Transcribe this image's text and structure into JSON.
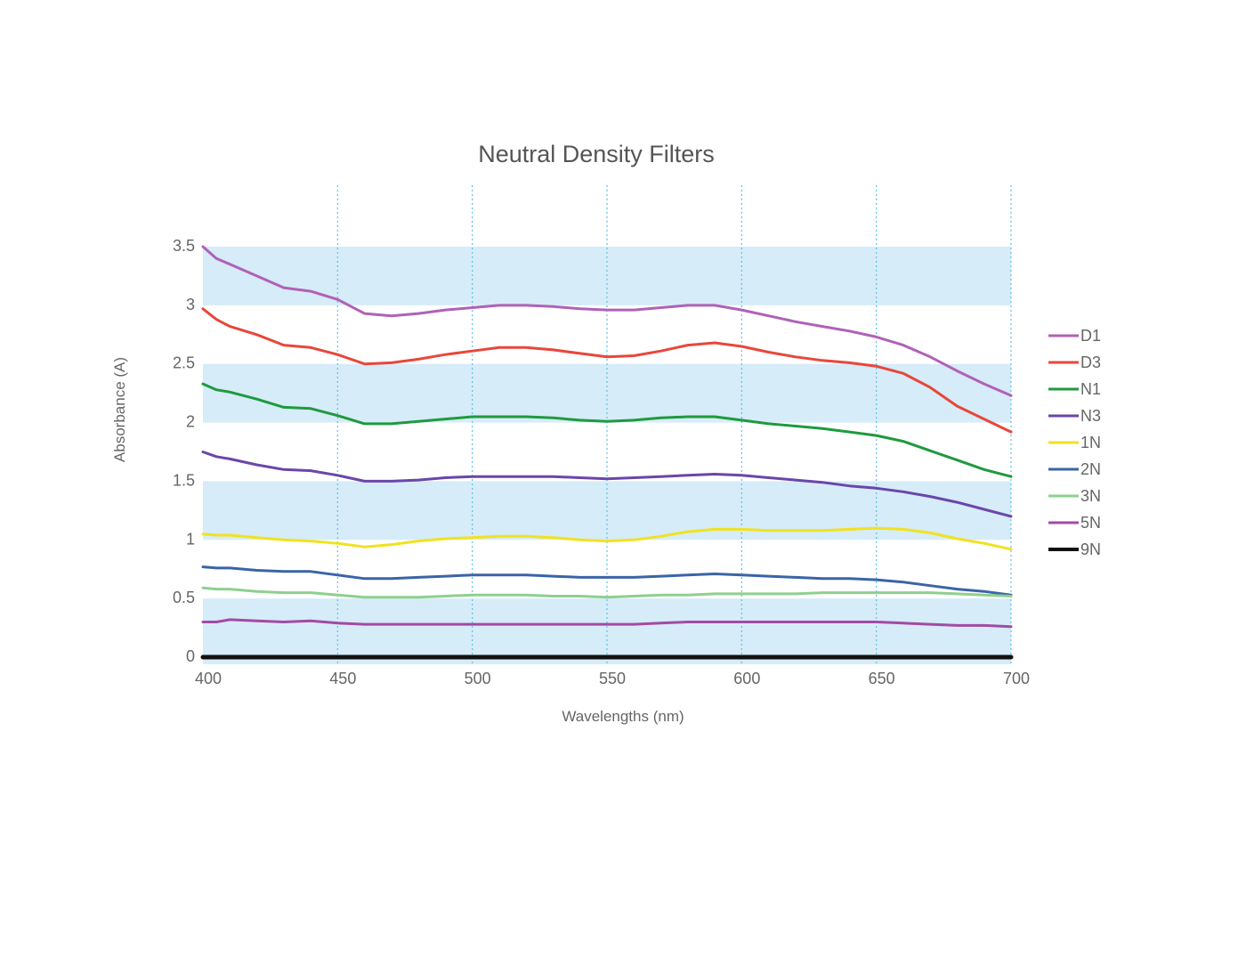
{
  "chart_data": {
    "type": "line",
    "title": "Neutral Density Filters",
    "xlabel": "Wavelengths (nm)",
    "ylabel": "Absorbance (A)",
    "xlim": [
      400,
      700
    ],
    "ylim": [
      0,
      3.5
    ],
    "x_ticks": [
      400,
      450,
      500,
      550,
      600,
      650,
      700
    ],
    "x_tick_labels": [
      "400",
      "450",
      "500",
      "550",
      "600",
      "650",
      "700"
    ],
    "y_ticks": [
      0,
      0.5,
      1,
      1.5,
      2,
      2.5,
      3,
      3.5
    ],
    "y_tick_labels": [
      "0",
      "0.5",
      "1",
      "1.5",
      "2",
      "2.5",
      "3",
      "3.5"
    ],
    "x_grid": true,
    "y_bands": "alternating light blue shading every 0.5 A",
    "band_color": "#d6ecf8",
    "grid_color": "#5bc0eb",
    "legend_position": "right",
    "series": [
      {
        "name": "D1",
        "color": "#b061b8",
        "x": [
          400,
          405,
          410,
          420,
          430,
          440,
          450,
          460,
          470,
          480,
          490,
          500,
          510,
          520,
          530,
          540,
          550,
          560,
          570,
          580,
          590,
          600,
          610,
          620,
          630,
          640,
          650,
          660,
          670,
          680,
          690,
          700
        ],
        "y": [
          3.5,
          3.4,
          3.35,
          3.25,
          3.15,
          3.12,
          3.05,
          2.93,
          2.91,
          2.93,
          2.96,
          2.98,
          3.0,
          3.0,
          2.99,
          2.97,
          2.96,
          2.96,
          2.98,
          3.0,
          3.0,
          2.96,
          2.91,
          2.86,
          2.82,
          2.78,
          2.73,
          2.66,
          2.56,
          2.44,
          2.33,
          2.23
        ]
      },
      {
        "name": "D3",
        "color": "#e8473a",
        "x": [
          400,
          405,
          410,
          420,
          430,
          440,
          450,
          460,
          470,
          480,
          490,
          500,
          510,
          520,
          530,
          540,
          550,
          560,
          570,
          580,
          590,
          600,
          610,
          620,
          630,
          640,
          650,
          660,
          670,
          680,
          690,
          700
        ],
        "y": [
          2.97,
          2.88,
          2.82,
          2.75,
          2.66,
          2.64,
          2.58,
          2.5,
          2.51,
          2.54,
          2.58,
          2.61,
          2.64,
          2.64,
          2.62,
          2.59,
          2.56,
          2.57,
          2.61,
          2.66,
          2.68,
          2.65,
          2.6,
          2.56,
          2.53,
          2.51,
          2.48,
          2.42,
          2.3,
          2.14,
          2.03,
          1.92
        ]
      },
      {
        "name": "N1",
        "color": "#1f9a3e",
        "x": [
          400,
          405,
          410,
          420,
          430,
          440,
          450,
          460,
          470,
          480,
          490,
          500,
          510,
          520,
          530,
          540,
          550,
          560,
          570,
          580,
          590,
          600,
          610,
          620,
          630,
          640,
          650,
          660,
          670,
          680,
          690,
          700
        ],
        "y": [
          2.33,
          2.28,
          2.26,
          2.2,
          2.13,
          2.12,
          2.06,
          1.99,
          1.99,
          2.01,
          2.03,
          2.05,
          2.05,
          2.05,
          2.04,
          2.02,
          2.01,
          2.02,
          2.04,
          2.05,
          2.05,
          2.02,
          1.99,
          1.97,
          1.95,
          1.92,
          1.89,
          1.84,
          1.76,
          1.68,
          1.6,
          1.54
        ]
      },
      {
        "name": "N3",
        "color": "#6a46aa",
        "x": [
          400,
          405,
          410,
          420,
          430,
          440,
          450,
          460,
          470,
          480,
          490,
          500,
          510,
          520,
          530,
          540,
          550,
          560,
          570,
          580,
          590,
          600,
          610,
          620,
          630,
          640,
          650,
          660,
          670,
          680,
          690,
          700
        ],
        "y": [
          1.75,
          1.71,
          1.69,
          1.64,
          1.6,
          1.59,
          1.55,
          1.5,
          1.5,
          1.51,
          1.53,
          1.54,
          1.54,
          1.54,
          1.54,
          1.53,
          1.52,
          1.53,
          1.54,
          1.55,
          1.56,
          1.55,
          1.53,
          1.51,
          1.49,
          1.46,
          1.44,
          1.41,
          1.37,
          1.32,
          1.26,
          1.2
        ]
      },
      {
        "name": "1N",
        "color": "#f1e21e",
        "x": [
          400,
          405,
          410,
          420,
          430,
          440,
          450,
          460,
          470,
          480,
          490,
          500,
          510,
          520,
          530,
          540,
          550,
          560,
          570,
          580,
          590,
          600,
          610,
          620,
          630,
          640,
          650,
          660,
          670,
          680,
          690,
          700
        ],
        "y": [
          1.05,
          1.04,
          1.04,
          1.02,
          1.0,
          0.99,
          0.97,
          0.94,
          0.96,
          0.99,
          1.01,
          1.02,
          1.03,
          1.03,
          1.02,
          1.0,
          0.99,
          1.0,
          1.03,
          1.07,
          1.09,
          1.09,
          1.08,
          1.08,
          1.08,
          1.09,
          1.1,
          1.09,
          1.06,
          1.01,
          0.97,
          0.92
        ]
      },
      {
        "name": "2N",
        "color": "#3a64a8",
        "x": [
          400,
          405,
          410,
          420,
          430,
          440,
          450,
          460,
          470,
          480,
          490,
          500,
          510,
          520,
          530,
          540,
          550,
          560,
          570,
          580,
          590,
          600,
          610,
          620,
          630,
          640,
          650,
          660,
          670,
          680,
          690,
          700
        ],
        "y": [
          0.77,
          0.76,
          0.76,
          0.74,
          0.73,
          0.73,
          0.7,
          0.67,
          0.67,
          0.68,
          0.69,
          0.7,
          0.7,
          0.7,
          0.69,
          0.68,
          0.68,
          0.68,
          0.69,
          0.7,
          0.71,
          0.7,
          0.69,
          0.68,
          0.67,
          0.67,
          0.66,
          0.64,
          0.61,
          0.58,
          0.56,
          0.53
        ]
      },
      {
        "name": "3N",
        "color": "#8fcf8f",
        "x": [
          400,
          405,
          410,
          420,
          430,
          440,
          450,
          460,
          470,
          480,
          490,
          500,
          510,
          520,
          530,
          540,
          550,
          560,
          570,
          580,
          590,
          600,
          610,
          620,
          630,
          640,
          650,
          660,
          670,
          680,
          690,
          700
        ],
        "y": [
          0.59,
          0.58,
          0.58,
          0.56,
          0.55,
          0.55,
          0.53,
          0.51,
          0.51,
          0.51,
          0.52,
          0.53,
          0.53,
          0.53,
          0.52,
          0.52,
          0.51,
          0.52,
          0.53,
          0.53,
          0.54,
          0.54,
          0.54,
          0.54,
          0.55,
          0.55,
          0.55,
          0.55,
          0.55,
          0.54,
          0.53,
          0.52
        ]
      },
      {
        "name": "5N",
        "color": "#a34aa5",
        "x": [
          400,
          405,
          410,
          420,
          430,
          440,
          450,
          460,
          470,
          480,
          490,
          500,
          510,
          520,
          530,
          540,
          550,
          560,
          570,
          580,
          590,
          600,
          610,
          620,
          630,
          640,
          650,
          660,
          670,
          680,
          690,
          700
        ],
        "y": [
          0.3,
          0.3,
          0.32,
          0.31,
          0.3,
          0.31,
          0.29,
          0.28,
          0.28,
          0.28,
          0.28,
          0.28,
          0.28,
          0.28,
          0.28,
          0.28,
          0.28,
          0.28,
          0.29,
          0.3,
          0.3,
          0.3,
          0.3,
          0.3,
          0.3,
          0.3,
          0.3,
          0.29,
          0.28,
          0.27,
          0.27,
          0.26
        ]
      },
      {
        "name": "9N",
        "color": "#111111",
        "x": [
          400,
          450,
          500,
          550,
          600,
          650,
          700
        ],
        "y": [
          0,
          0,
          0,
          0,
          0,
          0,
          0
        ]
      }
    ]
  }
}
